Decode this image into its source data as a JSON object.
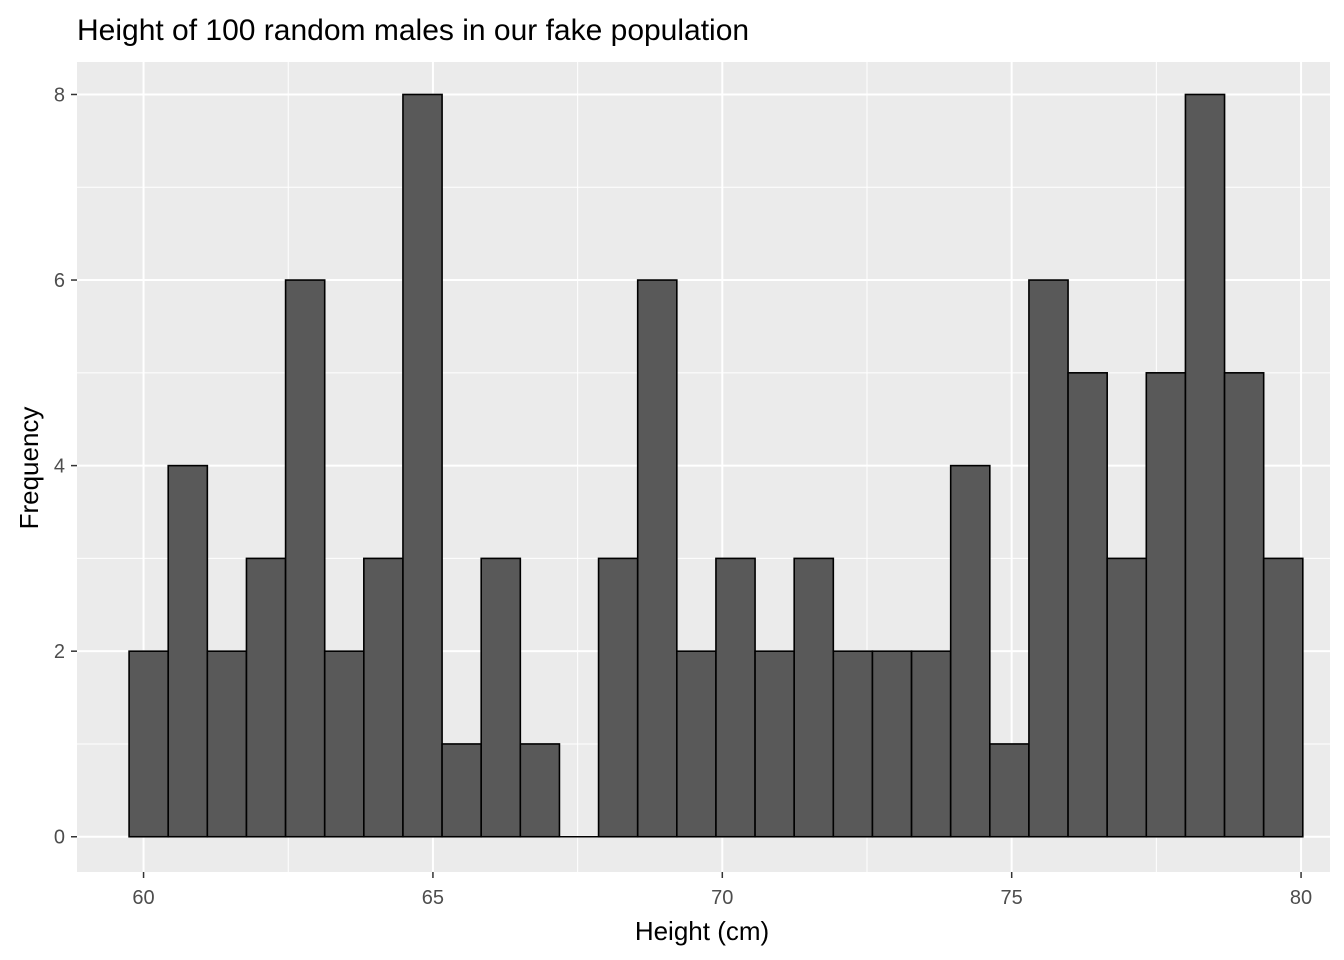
{
  "chart_data": {
    "type": "bar",
    "title": "Height of 100 random males in our fake population",
    "xlabel": "Height (cm)",
    "ylabel": "Frequency",
    "xlim": [
      58.85,
      80.5
    ],
    "ylim": [
      -0.38,
      8.35
    ],
    "x_ticks": [
      60,
      65,
      70,
      75,
      80
    ],
    "y_ticks": [
      0,
      2,
      4,
      6,
      8
    ],
    "x_tick_labels": [
      "60",
      "65",
      "70",
      "75",
      "80"
    ],
    "y_tick_labels": [
      "0",
      "2",
      "4",
      "6",
      "8"
    ],
    "bin_start": 59.75,
    "bin_width": 0.676,
    "values": [
      2,
      4,
      2,
      3,
      6,
      2,
      3,
      8,
      1,
      3,
      1,
      0,
      3,
      6,
      2,
      3,
      2,
      3,
      2,
      2,
      2,
      4,
      1,
      6,
      5,
      3,
      5,
      8,
      5,
      3
    ],
    "grid": true,
    "colors": {
      "panel_background": "#ebebeb",
      "grid_major": "#ffffff",
      "bar_fill": "#595959",
      "bar_stroke": "#000000",
      "tick_text": "#4d4d4d"
    }
  }
}
